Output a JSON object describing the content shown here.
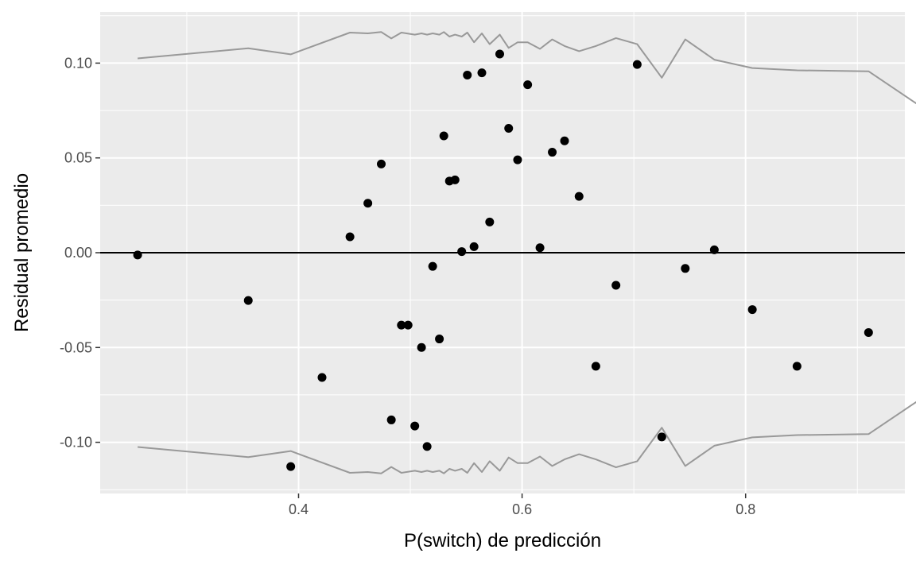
{
  "chart_data": {
    "type": "scatter",
    "title": "",
    "xlabel": "P(switch) de predicción",
    "ylabel": "Residual promedio",
    "xlim": [
      0.2225,
      0.9425
    ],
    "ylim": [
      -0.127,
      0.127
    ],
    "x_ticks": [
      0.4,
      0.6,
      0.8
    ],
    "x_tick_labels": [
      "0.4",
      "0.6",
      "0.8"
    ],
    "x_minor_ticks": [
      0.3,
      0.5,
      0.7,
      0.9
    ],
    "y_ticks": [
      -0.1,
      -0.05,
      0.0,
      0.05,
      0.1
    ],
    "y_tick_labels": [
      "-0.10",
      "-0.05",
      "0.00",
      "0.05",
      "0.10"
    ],
    "y_minor_ticks": [
      -0.125,
      -0.075,
      -0.025,
      0.025,
      0.075,
      0.125
    ],
    "grid": true,
    "legend": "none",
    "reference_line_y": 0,
    "colors": {
      "panel": "#ebebeb",
      "grid": "#ffffff",
      "points": "#000000",
      "bands": "#999999",
      "zero_line": "#000000"
    },
    "points": [
      {
        "x": 0.256,
        "y": -0.0012
      },
      {
        "x": 0.355,
        "y": -0.0252
      },
      {
        "x": 0.393,
        "y": -0.1128
      },
      {
        "x": 0.421,
        "y": -0.0658
      },
      {
        "x": 0.446,
        "y": 0.0084
      },
      {
        "x": 0.462,
        "y": 0.0261
      },
      {
        "x": 0.474,
        "y": 0.0468
      },
      {
        "x": 0.483,
        "y": -0.0882
      },
      {
        "x": 0.492,
        "y": -0.0382
      },
      {
        "x": 0.498,
        "y": -0.0382
      },
      {
        "x": 0.504,
        "y": -0.0914
      },
      {
        "x": 0.51,
        "y": -0.05
      },
      {
        "x": 0.515,
        "y": -0.1022
      },
      {
        "x": 0.52,
        "y": -0.0072
      },
      {
        "x": 0.526,
        "y": -0.0455
      },
      {
        "x": 0.53,
        "y": 0.0616
      },
      {
        "x": 0.535,
        "y": 0.0378
      },
      {
        "x": 0.54,
        "y": 0.0384
      },
      {
        "x": 0.546,
        "y": 0.0006
      },
      {
        "x": 0.551,
        "y": 0.0937
      },
      {
        "x": 0.557,
        "y": 0.0032
      },
      {
        "x": 0.564,
        "y": 0.0949
      },
      {
        "x": 0.571,
        "y": 0.0162
      },
      {
        "x": 0.58,
        "y": 0.1048
      },
      {
        "x": 0.588,
        "y": 0.0656
      },
      {
        "x": 0.596,
        "y": 0.049
      },
      {
        "x": 0.605,
        "y": 0.0886
      },
      {
        "x": 0.616,
        "y": 0.0026
      },
      {
        "x": 0.627,
        "y": 0.053
      },
      {
        "x": 0.638,
        "y": 0.059
      },
      {
        "x": 0.651,
        "y": 0.0297
      },
      {
        "x": 0.666,
        "y": -0.0599
      },
      {
        "x": 0.684,
        "y": -0.0172
      },
      {
        "x": 0.703,
        "y": 0.0993
      },
      {
        "x": 0.725,
        "y": -0.0972
      },
      {
        "x": 0.746,
        "y": -0.0083
      },
      {
        "x": 0.772,
        "y": 0.0015
      },
      {
        "x": 0.806,
        "y": -0.03
      },
      {
        "x": 0.846,
        "y": -0.0599
      },
      {
        "x": 0.91,
        "y": -0.0421
      }
    ],
    "band": [
      {
        "x": 0.256,
        "y": 0.1025
      },
      {
        "x": 0.355,
        "y": 0.1078
      },
      {
        "x": 0.393,
        "y": 0.1046
      },
      {
        "x": 0.446,
        "y": 0.1161
      },
      {
        "x": 0.462,
        "y": 0.1157
      },
      {
        "x": 0.474,
        "y": 0.1164
      },
      {
        "x": 0.483,
        "y": 0.113
      },
      {
        "x": 0.492,
        "y": 0.1161
      },
      {
        "x": 0.504,
        "y": 0.115
      },
      {
        "x": 0.51,
        "y": 0.1157
      },
      {
        "x": 0.515,
        "y": 0.115
      },
      {
        "x": 0.52,
        "y": 0.1157
      },
      {
        "x": 0.526,
        "y": 0.115
      },
      {
        "x": 0.53,
        "y": 0.1164
      },
      {
        "x": 0.535,
        "y": 0.114
      },
      {
        "x": 0.54,
        "y": 0.115
      },
      {
        "x": 0.546,
        "y": 0.114
      },
      {
        "x": 0.551,
        "y": 0.1161
      },
      {
        "x": 0.557,
        "y": 0.111
      },
      {
        "x": 0.564,
        "y": 0.1157
      },
      {
        "x": 0.571,
        "y": 0.11
      },
      {
        "x": 0.58,
        "y": 0.115
      },
      {
        "x": 0.588,
        "y": 0.108
      },
      {
        "x": 0.596,
        "y": 0.111
      },
      {
        "x": 0.605,
        "y": 0.111
      },
      {
        "x": 0.616,
        "y": 0.1075
      },
      {
        "x": 0.627,
        "y": 0.1125
      },
      {
        "x": 0.638,
        "y": 0.109
      },
      {
        "x": 0.651,
        "y": 0.1063
      },
      {
        "x": 0.666,
        "y": 0.109
      },
      {
        "x": 0.684,
        "y": 0.1132
      },
      {
        "x": 0.703,
        "y": 0.11
      },
      {
        "x": 0.725,
        "y": 0.0923
      },
      {
        "x": 0.746,
        "y": 0.1125
      },
      {
        "x": 0.772,
        "y": 0.1018
      },
      {
        "x": 0.806,
        "y": 0.0974
      },
      {
        "x": 0.846,
        "y": 0.0962
      },
      {
        "x": 0.91,
        "y": 0.0957
      },
      {
        "x": 0.955,
        "y": 0.0778
      }
    ]
  }
}
